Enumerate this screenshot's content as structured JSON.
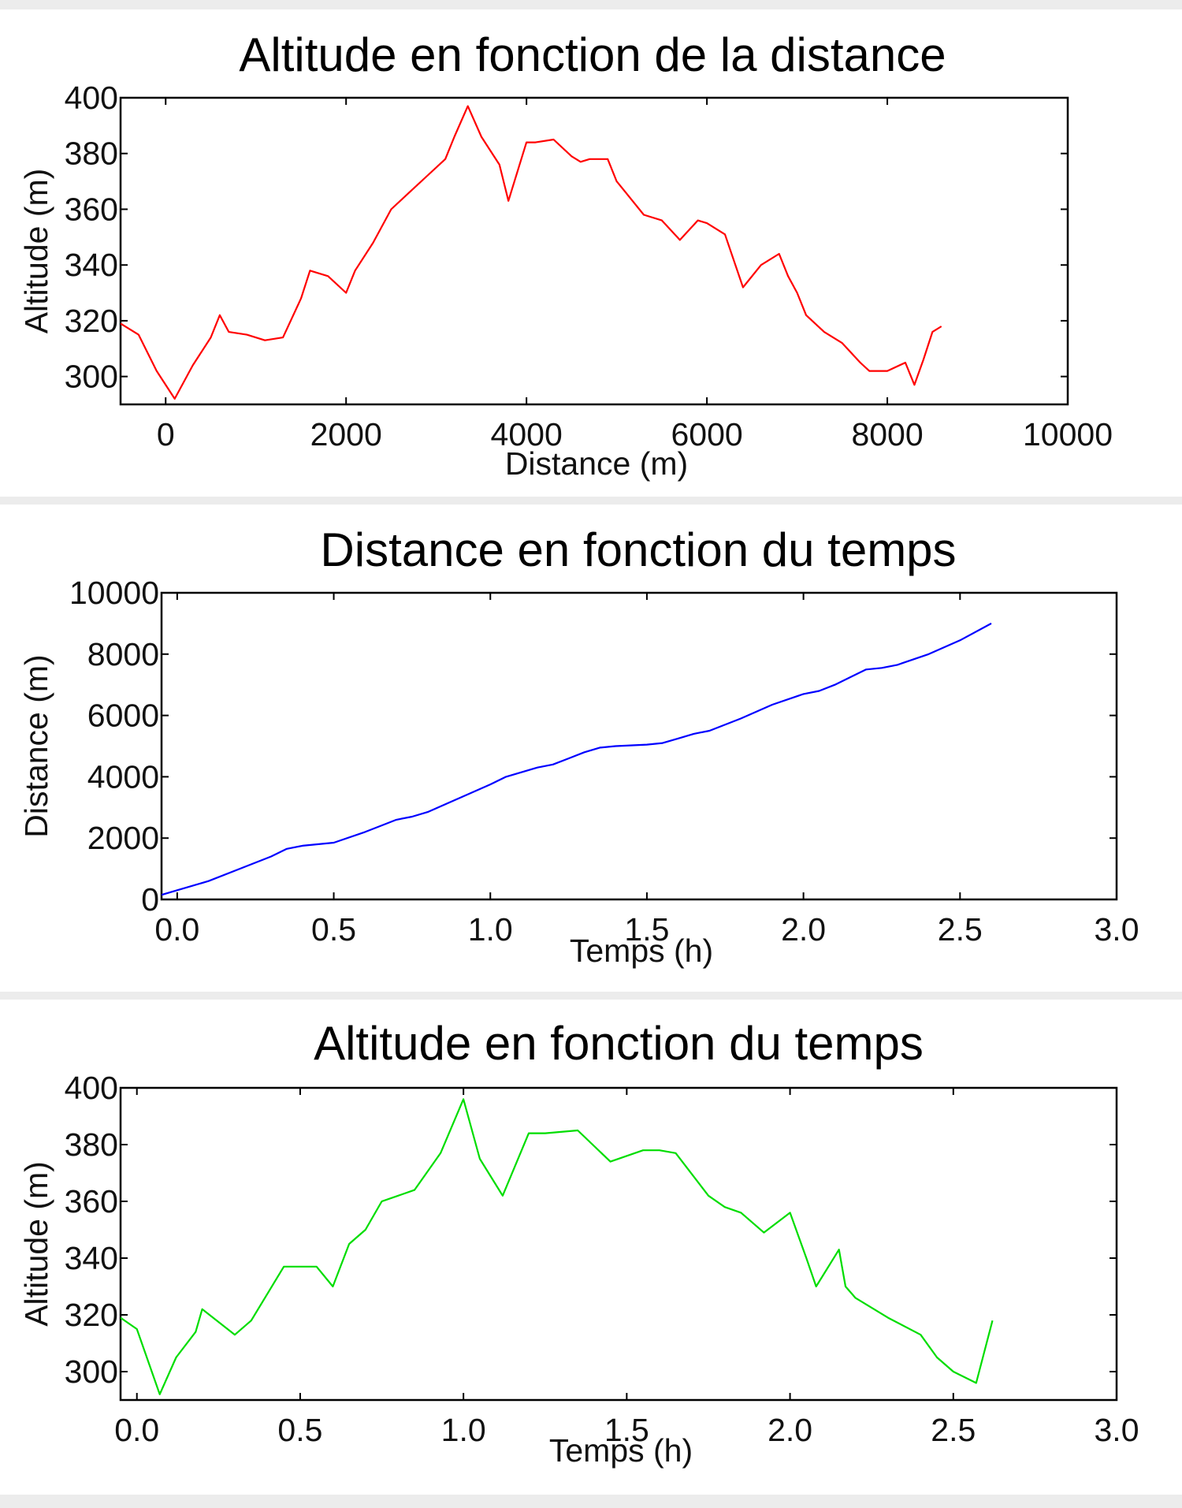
{
  "chart_data": [
    {
      "type": "line",
      "title": "Altitude en fonction de la distance",
      "xlabel": "Distance (m)",
      "ylabel": "Altitude (m)",
      "xlim": [
        -500,
        10000
      ],
      "ylim": [
        290,
        400
      ],
      "xticks": [
        "0",
        "2000",
        "4000",
        "6000",
        "8000",
        "10000"
      ],
      "yticks": [
        "300",
        "320",
        "340",
        "360",
        "380",
        "400"
      ],
      "grid": false,
      "series": [
        {
          "color": "#ff0000",
          "x": [
            -500,
            -300,
            -100,
            100,
            300,
            500,
            600,
            700,
            900,
            1100,
            1300,
            1500,
            1600,
            1800,
            2000,
            2100,
            2300,
            2500,
            2700,
            2900,
            3100,
            3200,
            3350,
            3500,
            3700,
            3800,
            4000,
            4100,
            4300,
            4500,
            4600,
            4700,
            4900,
            5000,
            5100,
            5300,
            5500,
            5700,
            5900,
            6000,
            6200,
            6400,
            6600,
            6800,
            6900,
            7000,
            7100,
            7300,
            7500,
            7700,
            7800,
            8000,
            8200,
            8300,
            8400,
            8500,
            8600
          ],
          "y": [
            319,
            315,
            302,
            292,
            304,
            314,
            322,
            316,
            315,
            313,
            314,
            328,
            338,
            336,
            330,
            338,
            348,
            360,
            366,
            372,
            378,
            386,
            397,
            386,
            376,
            363,
            384,
            384,
            385,
            379,
            377,
            378,
            378,
            370,
            366,
            358,
            356,
            349,
            356,
            355,
            351,
            332,
            340,
            344,
            336,
            330,
            322,
            316,
            312,
            305,
            302,
            302,
            305,
            297,
            306,
            316,
            318
          ]
        }
      ]
    },
    {
      "type": "line",
      "title": "Distance en fonction du temps",
      "xlabel": "Temps (h)",
      "ylabel": "Distance (m)",
      "xlim": [
        -0.05,
        3.0
      ],
      "ylim": [
        0,
        10000
      ],
      "xticks": [
        "0.0",
        "0.5",
        "1.0",
        "1.5",
        "2.0",
        "2.5",
        "3.0"
      ],
      "yticks": [
        "0",
        "2000",
        "4000",
        "6000",
        "8000",
        "10000"
      ],
      "grid": false,
      "series": [
        {
          "color": "#0000ff",
          "x": [
            -0.05,
            0.0,
            0.1,
            0.2,
            0.3,
            0.35,
            0.4,
            0.5,
            0.6,
            0.65,
            0.7,
            0.75,
            0.8,
            0.9,
            1.0,
            1.05,
            1.1,
            1.15,
            1.2,
            1.25,
            1.3,
            1.35,
            1.4,
            1.5,
            1.55,
            1.6,
            1.65,
            1.7,
            1.8,
            1.9,
            2.0,
            2.05,
            2.1,
            2.15,
            2.2,
            2.25,
            2.3,
            2.4,
            2.5,
            2.6
          ],
          "y": [
            150,
            300,
            600,
            1000,
            1400,
            1650,
            1750,
            1850,
            2200,
            2400,
            2600,
            2700,
            2850,
            3300,
            3750,
            4000,
            4150,
            4300,
            4400,
            4600,
            4800,
            4950,
            5000,
            5050,
            5100,
            5250,
            5400,
            5500,
            5900,
            6350,
            6700,
            6800,
            7000,
            7250,
            7500,
            7550,
            7650,
            8000,
            8450,
            9000
          ]
        }
      ]
    },
    {
      "type": "line",
      "title": "Altitude en fonction du temps",
      "xlabel": "Temps (h)",
      "ylabel": "Altitude (m)",
      "xlim": [
        -0.05,
        3.0
      ],
      "ylim": [
        290,
        400
      ],
      "xticks": [
        "0.0",
        "0.5",
        "1.0",
        "1.5",
        "2.0",
        "2.5",
        "3.0"
      ],
      "yticks": [
        "300",
        "320",
        "340",
        "360",
        "380",
        "400"
      ],
      "grid": false,
      "series": [
        {
          "color": "#00dd00",
          "x": [
            -0.05,
            0.0,
            0.07,
            0.12,
            0.18,
            0.2,
            0.3,
            0.35,
            0.45,
            0.55,
            0.6,
            0.65,
            0.7,
            0.75,
            0.8,
            0.85,
            0.93,
            1.0,
            1.05,
            1.12,
            1.2,
            1.25,
            1.35,
            1.45,
            1.55,
            1.6,
            1.65,
            1.75,
            1.8,
            1.85,
            1.92,
            2.0,
            2.05,
            2.08,
            2.15,
            2.17,
            2.2,
            2.3,
            2.4,
            2.45,
            2.5,
            2.57,
            2.62
          ],
          "y": [
            319,
            315,
            292,
            305,
            314,
            322,
            313,
            318,
            337,
            337,
            330,
            345,
            350,
            360,
            362,
            364,
            377,
            396,
            375,
            362,
            384,
            384,
            385,
            374,
            378,
            378,
            377,
            362,
            358,
            356,
            349,
            356,
            340,
            330,
            343,
            330,
            326,
            319,
            313,
            305,
            300,
            296,
            318
          ]
        }
      ]
    }
  ]
}
